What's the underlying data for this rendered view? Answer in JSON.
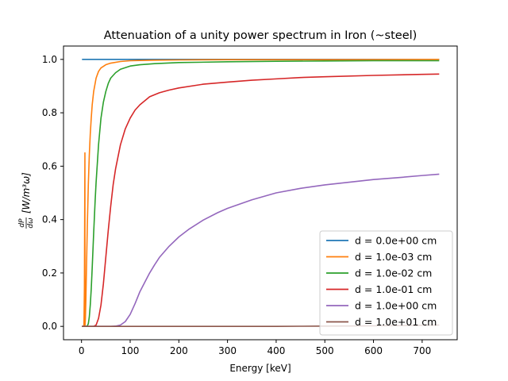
{
  "chart_data": {
    "type": "line",
    "title": "Attenuation of a unity power spectrum in Iron (~steel)",
    "xlabel": "Energy [keV]",
    "ylabel_frac_num": "dP",
    "ylabel_frac_den": "dω",
    "ylabel_units": "[W/m³ω]",
    "xlim": [
      -37,
      772
    ],
    "ylim": [
      -0.05,
      1.05
    ],
    "xticks": [
      0,
      100,
      200,
      300,
      400,
      500,
      600,
      700
    ],
    "yticks": [
      0.0,
      0.2,
      0.4,
      0.6,
      0.8,
      1.0
    ],
    "legend_position": "lower-right",
    "series": [
      {
        "name": "d = 0.0e+00 cm",
        "color": "#1f77b4",
        "x": [
          1,
          7,
          10,
          50,
          100,
          200,
          300,
          400,
          500,
          600,
          735
        ],
        "y": [
          1.0,
          1.0,
          1.0,
          1.0,
          1.0,
          1.0,
          1.0,
          1.0,
          1.0,
          1.0,
          1.0
        ]
      },
      {
        "name": "d = 1.0e-03 cm",
        "color": "#ff7f0e",
        "x": [
          1,
          3,
          5,
          6,
          7,
          7.1,
          8,
          9,
          10,
          12,
          14,
          16,
          18,
          20,
          22,
          25,
          30,
          35,
          40,
          50,
          60,
          80,
          100,
          150,
          200,
          300,
          500,
          735
        ],
        "y": [
          0.0,
          0.0,
          0.0,
          0.15,
          0.65,
          0.0,
          0.03,
          0.1,
          0.2,
          0.38,
          0.53,
          0.64,
          0.72,
          0.78,
          0.83,
          0.88,
          0.93,
          0.955,
          0.968,
          0.98,
          0.986,
          0.992,
          0.995,
          0.997,
          0.998,
          0.999,
          0.999,
          1.0
        ]
      },
      {
        "name": "d = 1.0e-02 cm",
        "color": "#2ca02c",
        "x": [
          1,
          7,
          7.1,
          10,
          12,
          14,
          16,
          18,
          20,
          22,
          25,
          28,
          30,
          35,
          40,
          45,
          50,
          55,
          60,
          70,
          80,
          100,
          120,
          150,
          200,
          300,
          400,
          500,
          600,
          735
        ],
        "y": [
          0.0,
          0.0,
          0.0,
          0.0,
          0.002,
          0.01,
          0.035,
          0.08,
          0.14,
          0.22,
          0.35,
          0.47,
          0.54,
          0.68,
          0.78,
          0.84,
          0.88,
          0.91,
          0.93,
          0.95,
          0.963,
          0.975,
          0.98,
          0.984,
          0.988,
          0.991,
          0.993,
          0.994,
          0.995,
          0.995
        ]
      },
      {
        "name": "d = 1.0e-01 cm",
        "color": "#d62728",
        "x": [
          1,
          20,
          25,
          30,
          35,
          40,
          45,
          50,
          55,
          60,
          65,
          70,
          80,
          90,
          100,
          110,
          120,
          140,
          160,
          180,
          200,
          250,
          300,
          350,
          400,
          450,
          500,
          600,
          700,
          735
        ],
        "y": [
          0.0,
          0.0,
          0.0,
          0.005,
          0.03,
          0.08,
          0.16,
          0.26,
          0.36,
          0.45,
          0.53,
          0.59,
          0.68,
          0.74,
          0.78,
          0.81,
          0.83,
          0.86,
          0.875,
          0.885,
          0.893,
          0.907,
          0.915,
          0.922,
          0.927,
          0.932,
          0.935,
          0.94,
          0.944,
          0.945
        ]
      },
      {
        "name": "d = 1.0e+00 cm",
        "color": "#9467bd",
        "x": [
          1,
          60,
          70,
          80,
          90,
          100,
          110,
          120,
          130,
          140,
          150,
          160,
          180,
          200,
          220,
          250,
          280,
          300,
          350,
          400,
          450,
          500,
          550,
          600,
          650,
          700,
          735
        ],
        "y": [
          0.0,
          0.0,
          0.001,
          0.005,
          0.018,
          0.045,
          0.085,
          0.13,
          0.165,
          0.2,
          0.23,
          0.258,
          0.3,
          0.335,
          0.363,
          0.398,
          0.426,
          0.442,
          0.474,
          0.5,
          0.517,
          0.53,
          0.54,
          0.55,
          0.557,
          0.565,
          0.57
        ]
      },
      {
        "name": "d = 1.0e+01 cm",
        "color": "#8c564b",
        "x": [
          1,
          300,
          400,
          450,
          500,
          550,
          600,
          650,
          700,
          735
        ],
        "y": [
          0.0,
          0.0,
          0.0,
          0.0005,
          0.001,
          0.0015,
          0.002,
          0.003,
          0.004,
          0.005
        ]
      }
    ]
  }
}
